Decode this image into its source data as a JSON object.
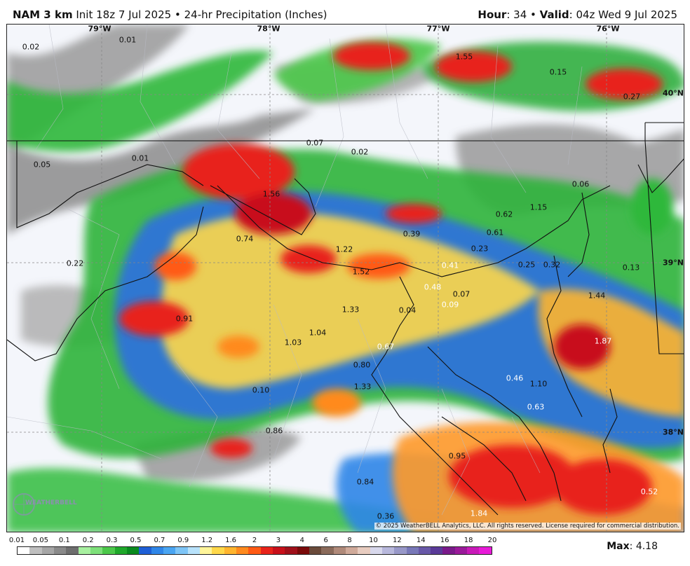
{
  "header": {
    "model": "NAM 3 km",
    "init": "Init 18z 7 Jul 2025",
    "sep": "•",
    "product": "24-hr Precipitation (Inches)",
    "hour_label": "Hour",
    "hour_value": "34",
    "valid_label": "Valid",
    "valid_value": "04z Wed 9 Jul 2025"
  },
  "coords": {
    "lon1": "79°W",
    "lon2": "78°W",
    "lon3": "77°W",
    "lon4": "76°W",
    "lat1": "40°N",
    "lat2": "39°N",
    "lat3": "38°N"
  },
  "point_values": [
    "0.02",
    "0.01",
    "1.55",
    "0.15",
    "0.27",
    "0.05",
    "0.01",
    "0.07",
    "0.02",
    "1.56",
    "0.06",
    "0.62",
    "1.15",
    "0.74",
    "0.39",
    "0.61",
    "0.23",
    "1.22",
    "0.22",
    "1.52",
    "0.41",
    "0.25",
    "0.32",
    "0.13",
    "0.48",
    "0.07",
    "1.44",
    "0.91",
    "1.33",
    "0.04",
    "0.09",
    "1.04",
    "1.03",
    "1.87",
    "0.67",
    "0.80",
    "0.46",
    "1.10",
    "0.10",
    "1.33",
    "0.63",
    "0.86",
    "0.95",
    "0.84",
    "0.52",
    "0.36",
    "1.84"
  ],
  "copyright": "© 2025 WeatherBELL Analytics, LLC. All rights reserved. License required for commercial distribution.",
  "logo_text": "WEATHERBELL",
  "legend": {
    "ticks": [
      "0.01",
      "0.05",
      "0.1",
      "0.2",
      "0.3",
      "0.5",
      "0.7",
      "0.9",
      "1.2",
      "1.6",
      "2",
      "3",
      "4",
      "6",
      "8",
      "10",
      "12",
      "14",
      "16",
      "18",
      "20"
    ],
    "colors": [
      "#ffffff",
      "#bfbfbf",
      "#a6a6a6",
      "#8a8a8a",
      "#6e6e6e",
      "#a8f0a0",
      "#7ee07a",
      "#4cc84a",
      "#1fa82a",
      "#0a8a1e",
      "#1e5fd6",
      "#2f86e8",
      "#4aa5f2",
      "#7ec5f7",
      "#b8e2fb",
      "#fff59a",
      "#ffd84a",
      "#ffb52e",
      "#ff8a1e",
      "#ff5a14",
      "#e8231a",
      "#c8101a",
      "#a0101a",
      "#7a0a0a",
      "#6a4a3a",
      "#8a6a5a",
      "#b08a7a",
      "#d0aa9a",
      "#e8ccc0",
      "#d8d8ec",
      "#b8b8dc",
      "#9898c8",
      "#7878b8",
      "#6858a8",
      "#5a3a98",
      "#7a1a8a",
      "#9a1a9a",
      "#c81ab8",
      "#e81ad8"
    ],
    "max_label": "Max",
    "max_value": "4.18"
  }
}
